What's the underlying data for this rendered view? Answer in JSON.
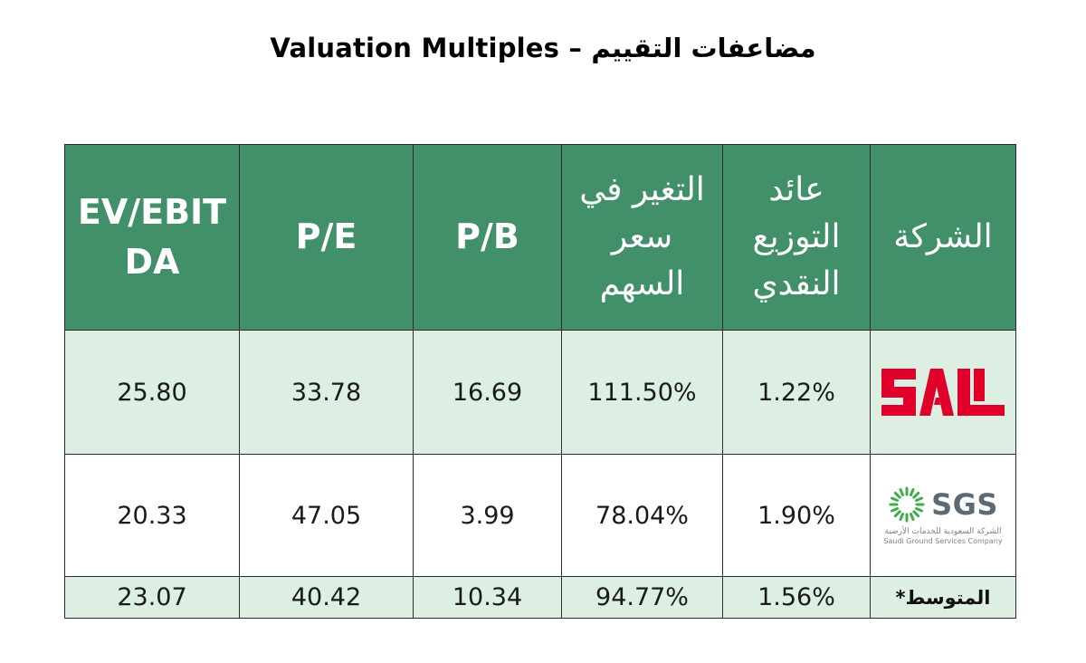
{
  "title": "Valuation Multiples – مضاعفات التقييم",
  "headers": {
    "ev_ebitda_line1": "EV/EBIT",
    "ev_ebitda_line2": "DA",
    "pe": "P/E",
    "pb": "P/B",
    "price_change_line1": "التغير في",
    "price_change_line2": "سعر",
    "price_change_line3": "السهم",
    "dividend_line1": "عائد",
    "dividend_line2": "التوزيع",
    "dividend_line3": "النقدي",
    "company": "الشركة"
  },
  "rows": [
    {
      "company_logo": "SAL",
      "ev_ebitda": "25.80",
      "pe": "33.78",
      "pb": "16.69",
      "price_change": "111.50%",
      "dividend_yield": "1.22%"
    },
    {
      "company_logo": "SGS",
      "logo_sub_ar": "الشركة السعودية للخدمات الأرضية",
      "logo_sub_en": "Saudi Ground Services Company",
      "ev_ebitda": "20.33",
      "pe": "47.05",
      "pb": "3.99",
      "price_change": "78.04%",
      "dividend_yield": "1.90%"
    }
  ],
  "average": {
    "label": "المتوسط*",
    "ev_ebitda": "23.07",
    "pe": "40.42",
    "pb": "10.34",
    "price_change": "94.77%",
    "dividend_yield": "1.56%"
  },
  "colors": {
    "header_bg": "#41906a",
    "row_tint": "#dcefe2",
    "sal_red": "#e0002a",
    "sgs_green": "#3fae49",
    "sgs_gray": "#5c6b73"
  }
}
